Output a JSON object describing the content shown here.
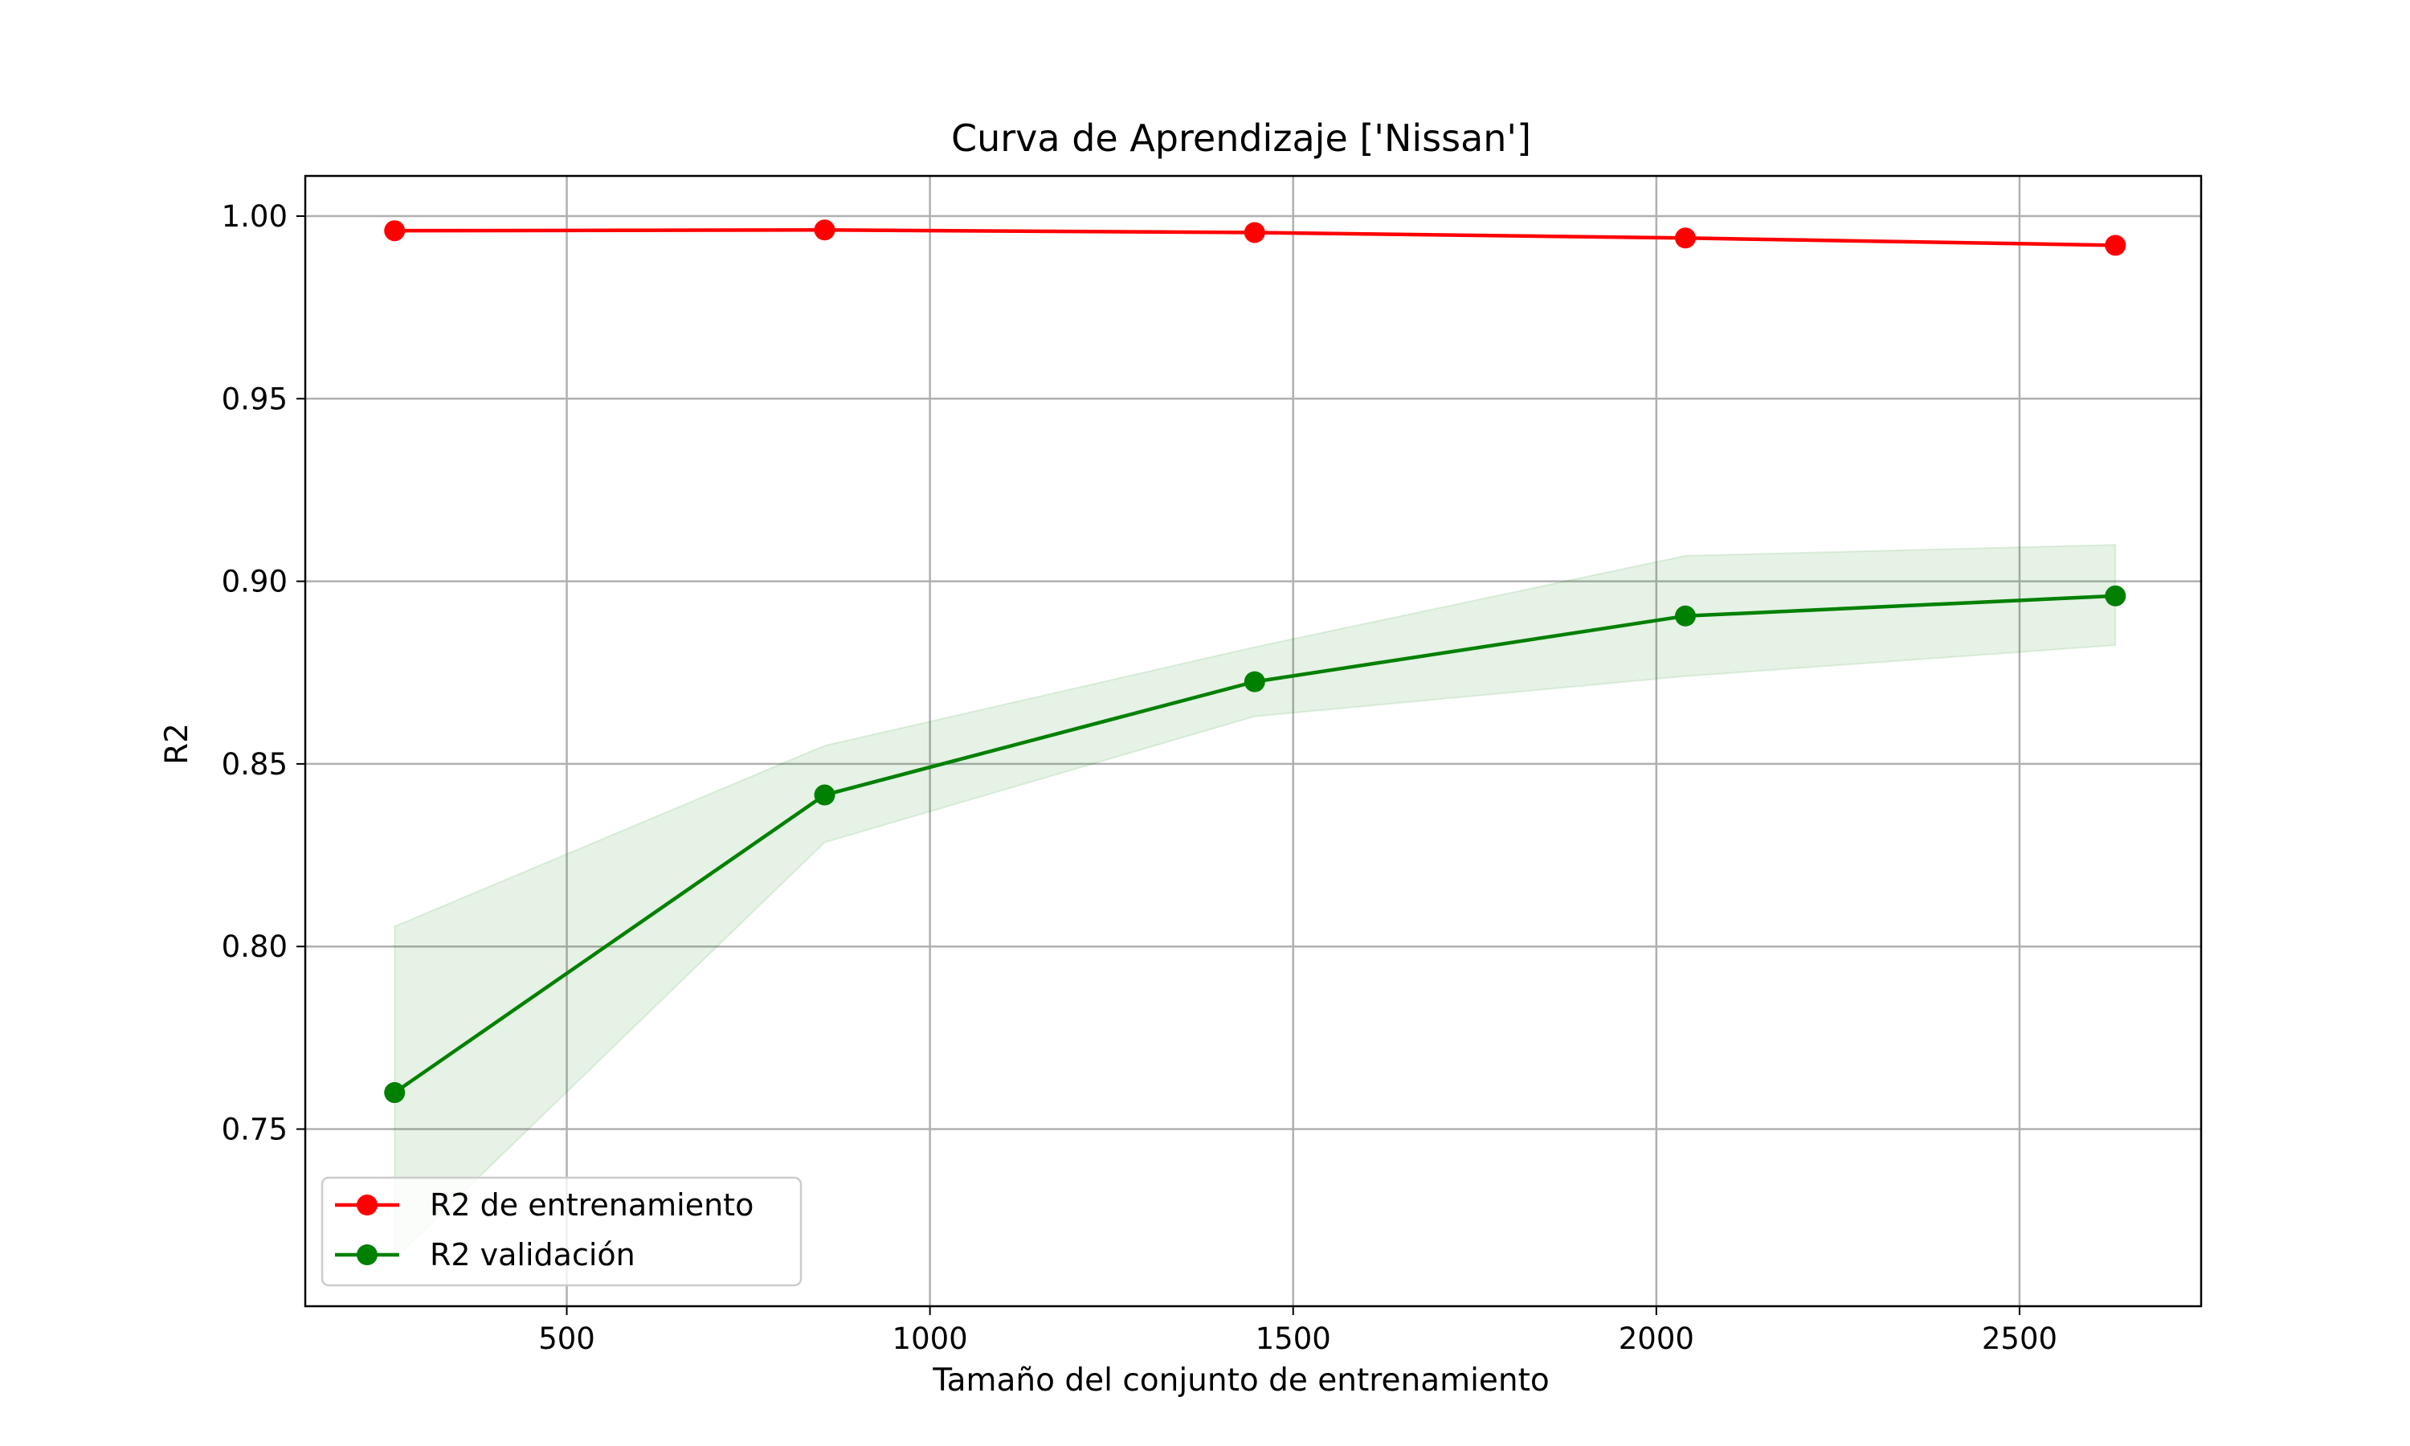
{
  "chart_data": {
    "type": "line",
    "title": "Curva de Aprendizaje ['Nissan']",
    "xlabel": "Tamaño del conjunto de entrenamiento",
    "ylabel": "R2",
    "x": [
      263,
      855,
      1447,
      2040,
      2632
    ],
    "xlim": [
      140,
      2750
    ],
    "ylim": [
      0.7015,
      1.011
    ],
    "xticks": [
      500,
      1000,
      1500,
      2000,
      2500
    ],
    "yticks": [
      0.75,
      0.8,
      0.85,
      0.9,
      0.95,
      1.0
    ],
    "xtick_labels": [
      "500",
      "1000",
      "1500",
      "2000",
      "2500"
    ],
    "ytick_labels": [
      "0.75",
      "0.80",
      "0.85",
      "0.90",
      "0.95",
      "1.00"
    ],
    "grid": true,
    "legend_position": "lower-left",
    "series": [
      {
        "name": "R2 de entrenamiento",
        "color": "#ff0000",
        "values": [
          0.996,
          0.9962,
          0.9955,
          0.994,
          0.992
        ]
      },
      {
        "name": "R2 validación",
        "color": "#008000",
        "values": [
          0.76,
          0.8415,
          0.8725,
          0.8905,
          0.896
        ],
        "band_upper": [
          0.8055,
          0.855,
          0.882,
          0.907,
          0.91
        ],
        "band_lower": [
          0.7145,
          0.8285,
          0.863,
          0.874,
          0.8825
        ],
        "band_color": "#008000"
      }
    ]
  }
}
